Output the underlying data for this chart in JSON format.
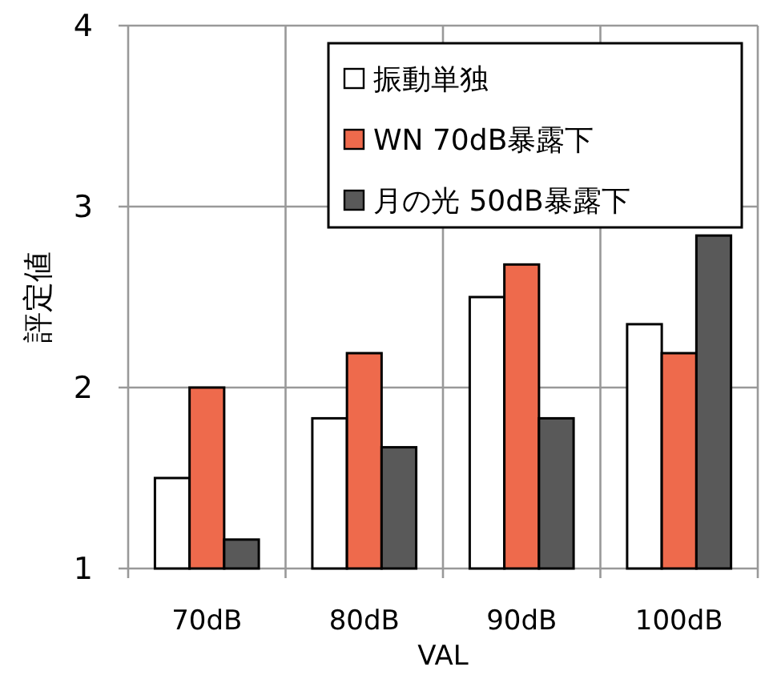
{
  "chart_data": {
    "type": "bar",
    "xlabel": "VAL",
    "ylabel": "評定値",
    "categories": [
      "70dB",
      "80dB",
      "90dB",
      "100dB"
    ],
    "series": [
      {
        "name": "振動単独",
        "color": "#ffffff",
        "values": [
          1.5,
          1.83,
          2.5,
          2.35
        ]
      },
      {
        "name": "WN 70dB暴露下",
        "color": "#ee6a4c",
        "values": [
          2.0,
          2.19,
          2.68,
          2.19
        ]
      },
      {
        "name": "月の光 50dB暴露下",
        "color": "#595959",
        "values": [
          1.16,
          1.67,
          1.83,
          2.84
        ]
      }
    ],
    "ylim": [
      1,
      4
    ],
    "yticks": [
      1,
      2,
      3,
      4
    ],
    "grid": true,
    "legend": "top right"
  }
}
